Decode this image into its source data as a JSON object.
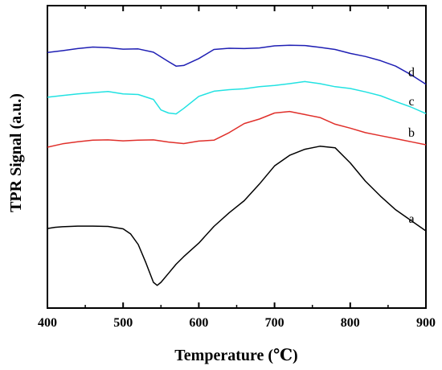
{
  "chart_data": {
    "type": "line",
    "xlabel": "Temperature (℃)",
    "ylabel": "TPR Signal (a.u.)",
    "xlim": [
      400,
      900
    ],
    "ylim": [
      0,
      1
    ],
    "x_ticks": [
      "400",
      "500",
      "600",
      "700",
      "800",
      "900"
    ],
    "y_ticks_labeled": false,
    "grid": false,
    "legend": "none",
    "series": [
      {
        "name": "a",
        "color": "#000000",
        "x": [
          400,
          410,
          420,
          440,
          460,
          480,
          500,
          510,
          520,
          530,
          540,
          545,
          550,
          560,
          570,
          580,
          600,
          620,
          640,
          660,
          680,
          700,
          720,
          740,
          760,
          780,
          800,
          820,
          840,
          860,
          880,
          900
        ],
        "y": [
          0.263,
          0.267,
          0.269,
          0.271,
          0.271,
          0.27,
          0.262,
          0.245,
          0.21,
          0.15,
          0.085,
          0.075,
          0.085,
          0.115,
          0.145,
          0.17,
          0.215,
          0.27,
          0.315,
          0.355,
          0.41,
          0.47,
          0.505,
          0.525,
          0.535,
          0.53,
          0.48,
          0.42,
          0.37,
          0.325,
          0.29,
          0.255
        ]
      },
      {
        "name": "b",
        "color": "#e0302b",
        "x": [
          400,
          420,
          440,
          460,
          480,
          500,
          520,
          540,
          560,
          580,
          600,
          620,
          640,
          660,
          680,
          700,
          720,
          740,
          760,
          780,
          800,
          820,
          840,
          860,
          880,
          900
        ],
        "y": [
          0.532,
          0.543,
          0.55,
          0.555,
          0.556,
          0.553,
          0.555,
          0.556,
          0.549,
          0.544,
          0.552,
          0.555,
          0.58,
          0.61,
          0.625,
          0.645,
          0.65,
          0.64,
          0.63,
          0.608,
          0.595,
          0.58,
          0.57,
          0.56,
          0.55,
          0.54
        ]
      },
      {
        "name": "c",
        "color": "#22e2e2",
        "x": [
          400,
          420,
          440,
          460,
          480,
          500,
          520,
          540,
          550,
          560,
          570,
          580,
          600,
          620,
          640,
          660,
          680,
          700,
          720,
          740,
          760,
          780,
          800,
          820,
          840,
          860,
          880,
          900
        ],
        "y": [
          0.697,
          0.703,
          0.708,
          0.712,
          0.716,
          0.708,
          0.706,
          0.69,
          0.655,
          0.645,
          0.642,
          0.66,
          0.7,
          0.717,
          0.722,
          0.725,
          0.732,
          0.736,
          0.742,
          0.749,
          0.742,
          0.732,
          0.726,
          0.715,
          0.702,
          0.683,
          0.665,
          0.643
        ]
      },
      {
        "name": "d",
        "color": "#1f1fb4",
        "x": [
          400,
          420,
          440,
          460,
          480,
          500,
          520,
          540,
          560,
          570,
          580,
          600,
          620,
          640,
          660,
          680,
          700,
          720,
          740,
          760,
          780,
          800,
          820,
          840,
          860,
          880,
          900
        ],
        "y": [
          0.845,
          0.851,
          0.858,
          0.863,
          0.861,
          0.856,
          0.857,
          0.846,
          0.815,
          0.8,
          0.802,
          0.825,
          0.855,
          0.859,
          0.858,
          0.86,
          0.867,
          0.869,
          0.868,
          0.862,
          0.855,
          0.842,
          0.832,
          0.818,
          0.8,
          0.772,
          0.74
        ]
      }
    ]
  }
}
